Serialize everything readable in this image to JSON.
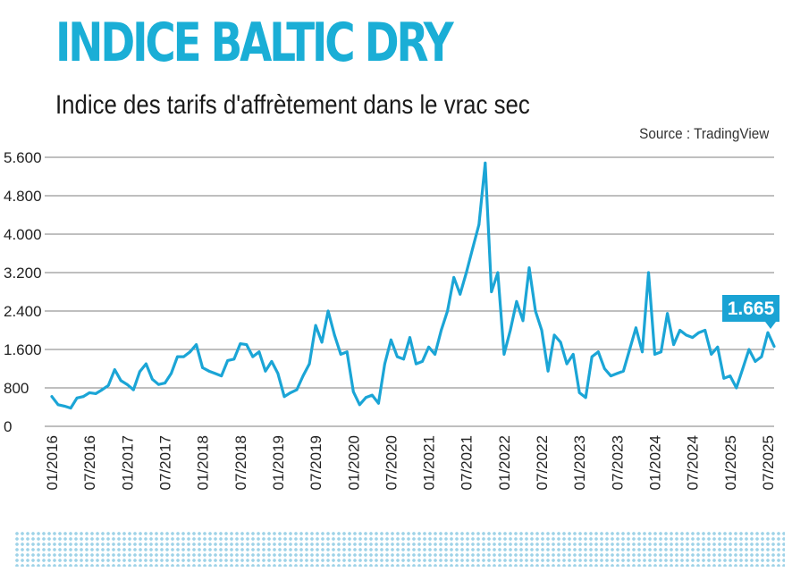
{
  "colors": {
    "accent": "#1ba5d6",
    "title": "#1aaed6",
    "grid": "#555555",
    "label_bg": "#1aa3d4"
  },
  "chart_data": {
    "type": "line",
    "title": "INDICE BALTIC DRY",
    "subtitle": "Indice des tarifs d'affrètement dans le vrac sec",
    "source": "Source : TradingView",
    "xlabel": "",
    "ylabel": "",
    "ylim": [
      0,
      5600
    ],
    "yticks": [
      0,
      800,
      1600,
      2400,
      3200,
      4000,
      4800,
      5600
    ],
    "ytick_labels": [
      "0",
      "800",
      "1.600",
      "2.400",
      "3.200",
      "4.000",
      "4.800",
      "5.600"
    ],
    "xlim": [
      "2016-01",
      "2025-08"
    ],
    "xtick_labels": [
      "01/2016",
      "07/2016",
      "01/2017",
      "07/2017",
      "01/2018",
      "07/2018",
      "01/2019",
      "07/2019",
      "01/2020",
      "07/2020",
      "01/2021",
      "07/2021",
      "01/2022",
      "07/2022",
      "01/2023",
      "07/2023",
      "01/2024",
      "07/2024",
      "01/2025",
      "07/2025"
    ],
    "grid": true,
    "last_value_label": "1.665",
    "series": [
      {
        "points": [
          [
            "2016-01",
            620
          ],
          [
            "2016-02",
            450
          ],
          [
            "2016-03",
            420
          ],
          [
            "2016-04",
            380
          ],
          [
            "2016-05",
            590
          ],
          [
            "2016-06",
            620
          ],
          [
            "2016-07",
            700
          ],
          [
            "2016-08",
            680
          ],
          [
            "2016-09",
            760
          ],
          [
            "2016-10",
            850
          ],
          [
            "2016-11",
            1180
          ],
          [
            "2016-12",
            950
          ],
          [
            "2017-01",
            870
          ],
          [
            "2017-02",
            760
          ],
          [
            "2017-03",
            1140
          ],
          [
            "2017-04",
            1300
          ],
          [
            "2017-05",
            980
          ],
          [
            "2017-06",
            870
          ],
          [
            "2017-07",
            900
          ],
          [
            "2017-08",
            1100
          ],
          [
            "2017-09",
            1450
          ],
          [
            "2017-10",
            1450
          ],
          [
            "2017-11",
            1550
          ],
          [
            "2017-12",
            1700
          ],
          [
            "2018-01",
            1220
          ],
          [
            "2018-02",
            1150
          ],
          [
            "2018-03",
            1100
          ],
          [
            "2018-04",
            1050
          ],
          [
            "2018-05",
            1370
          ],
          [
            "2018-06",
            1400
          ],
          [
            "2018-07",
            1720
          ],
          [
            "2018-08",
            1700
          ],
          [
            "2018-09",
            1450
          ],
          [
            "2018-10",
            1550
          ],
          [
            "2018-11",
            1150
          ],
          [
            "2018-12",
            1350
          ],
          [
            "2019-01",
            1100
          ],
          [
            "2019-02",
            620
          ],
          [
            "2019-03",
            700
          ],
          [
            "2019-04",
            760
          ],
          [
            "2019-05",
            1050
          ],
          [
            "2019-06",
            1300
          ],
          [
            "2019-07",
            2100
          ],
          [
            "2019-08",
            1750
          ],
          [
            "2019-09",
            2400
          ],
          [
            "2019-10",
            1900
          ],
          [
            "2019-11",
            1500
          ],
          [
            "2019-12",
            1550
          ],
          [
            "2020-01",
            720
          ],
          [
            "2020-02",
            450
          ],
          [
            "2020-03",
            600
          ],
          [
            "2020-04",
            650
          ],
          [
            "2020-05",
            480
          ],
          [
            "2020-06",
            1300
          ],
          [
            "2020-07",
            1800
          ],
          [
            "2020-08",
            1450
          ],
          [
            "2020-09",
            1400
          ],
          [
            "2020-10",
            1850
          ],
          [
            "2020-11",
            1300
          ],
          [
            "2020-12",
            1350
          ],
          [
            "2021-01",
            1650
          ],
          [
            "2021-02",
            1500
          ],
          [
            "2021-03",
            2000
          ],
          [
            "2021-04",
            2400
          ],
          [
            "2021-05",
            3100
          ],
          [
            "2021-06",
            2750
          ],
          [
            "2021-07",
            3200
          ],
          [
            "2021-08",
            3700
          ],
          [
            "2021-09",
            4200
          ],
          [
            "2021-10",
            5480
          ],
          [
            "2021-11",
            2800
          ],
          [
            "2021-12",
            3200
          ],
          [
            "2022-01",
            1500
          ],
          [
            "2022-02",
            2000
          ],
          [
            "2022-03",
            2600
          ],
          [
            "2022-04",
            2200
          ],
          [
            "2022-05",
            3300
          ],
          [
            "2022-06",
            2400
          ],
          [
            "2022-07",
            2000
          ],
          [
            "2022-08",
            1150
          ],
          [
            "2022-09",
            1900
          ],
          [
            "2022-10",
            1750
          ],
          [
            "2022-11",
            1300
          ],
          [
            "2022-12",
            1500
          ],
          [
            "2023-01",
            700
          ],
          [
            "2023-02",
            600
          ],
          [
            "2023-03",
            1450
          ],
          [
            "2023-04",
            1550
          ],
          [
            "2023-05",
            1200
          ],
          [
            "2023-06",
            1050
          ],
          [
            "2023-07",
            1100
          ],
          [
            "2023-08",
            1150
          ],
          [
            "2023-09",
            1600
          ],
          [
            "2023-10",
            2050
          ],
          [
            "2023-11",
            1550
          ],
          [
            "2023-12",
            3200
          ],
          [
            "2024-01",
            1500
          ],
          [
            "2024-02",
            1550
          ],
          [
            "2024-03",
            2350
          ],
          [
            "2024-04",
            1700
          ],
          [
            "2024-05",
            2000
          ],
          [
            "2024-06",
            1900
          ],
          [
            "2024-07",
            1850
          ],
          [
            "2024-08",
            1950
          ],
          [
            "2024-09",
            2000
          ],
          [
            "2024-10",
            1500
          ],
          [
            "2024-11",
            1650
          ],
          [
            "2024-12",
            1000
          ],
          [
            "2025-01",
            1050
          ],
          [
            "2025-02",
            800
          ],
          [
            "2025-03",
            1200
          ],
          [
            "2025-04",
            1600
          ],
          [
            "2025-05",
            1350
          ],
          [
            "2025-06",
            1450
          ],
          [
            "2025-07",
            1950
          ],
          [
            "2025-08",
            1665
          ]
        ]
      }
    ]
  }
}
